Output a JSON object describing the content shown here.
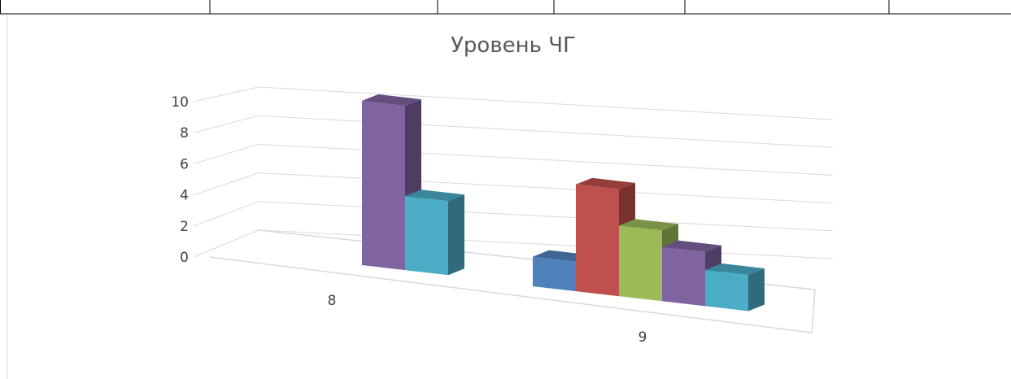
{
  "chart_data": {
    "type": "bar",
    "title": "Уровень ЧГ",
    "categories": [
      "8",
      "9"
    ],
    "series": [
      {
        "values": [
          0,
          1.8
        ],
        "color": "#4F81BD"
      },
      {
        "values": [
          0,
          6.5
        ],
        "color": "#C0504D"
      },
      {
        "values": [
          0,
          4.3
        ],
        "color": "#9BBB59"
      },
      {
        "values": [
          10,
          3.3
        ],
        "color": "#8064A2"
      },
      {
        "values": [
          4.5,
          2.2
        ],
        "color": "#4BACC6"
      }
    ],
    "ylim": [
      0,
      10
    ],
    "yticks": [
      0,
      2,
      4,
      6,
      8,
      10
    ],
    "grid": true,
    "legend": "none",
    "view": "3d-perspective"
  }
}
